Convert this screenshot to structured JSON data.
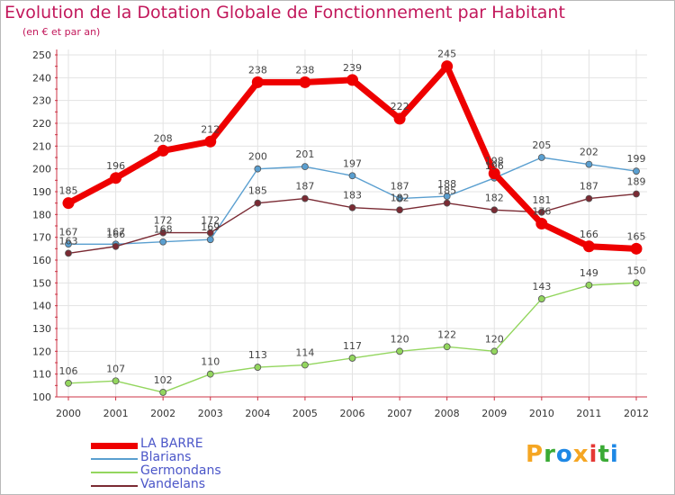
{
  "chart_data": {
    "type": "line",
    "title": "Evolution de la Dotation Globale de Fonctionnement par Habitant",
    "subtitle": "(en € et par an)",
    "xlabel": "",
    "ylabel": "",
    "x": [
      "2000",
      "2001",
      "2002",
      "2003",
      "2004",
      "2005",
      "2006",
      "2007",
      "2008",
      "2009",
      "2010",
      "2011",
      "2012"
    ],
    "ylim": [
      100,
      250
    ],
    "yticks": [
      100,
      110,
      120,
      130,
      140,
      150,
      160,
      170,
      180,
      190,
      200,
      210,
      220,
      230,
      240,
      250
    ],
    "grid": true,
    "legend_position": "bottom-left",
    "series": [
      {
        "name": "LA BARRE",
        "color": "#ee0000",
        "values": [
          185,
          196,
          208,
          212,
          238,
          238,
          239,
          222,
          245,
          198,
          176,
          166,
          165
        ]
      },
      {
        "name": "Blarians",
        "color": "#5a9fd0",
        "values": [
          167,
          167,
          168,
          169,
          200,
          201,
          197,
          187,
          188,
          196,
          205,
          202,
          199
        ]
      },
      {
        "name": "Germondans",
        "color": "#93d65e",
        "values": [
          106,
          107,
          102,
          110,
          113,
          114,
          117,
          120,
          122,
          120,
          143,
          149,
          150
        ]
      },
      {
        "name": "Vandelans",
        "color": "#7a2a33",
        "values": [
          163,
          166,
          172,
          172,
          185,
          187,
          183,
          182,
          185,
          182,
          181,
          187,
          189
        ]
      }
    ]
  },
  "logo": {
    "letters": [
      "P",
      "r",
      "o",
      "x",
      "i",
      "t",
      "i"
    ],
    "colors": [
      "#f5a623",
      "#3aaa35",
      "#1e88e5",
      "#f5a623",
      "#e53935",
      "#3aaa35",
      "#1e88e5"
    ]
  }
}
